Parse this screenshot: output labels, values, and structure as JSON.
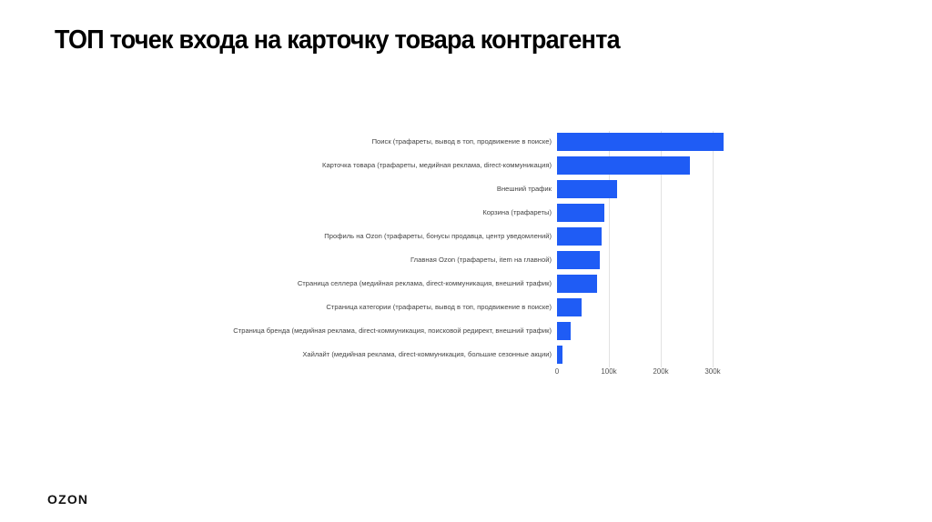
{
  "page": {
    "title": "ТОП точек входа на карточку товара контрагента",
    "logo": "OZON"
  },
  "chart_data": {
    "type": "bar",
    "orientation": "horizontal",
    "title": "ТОП точек входа на карточку товара контрагента",
    "xlabel": "",
    "ylabel": "",
    "categories": [
      "Поиск (трафареты, вывод в топ, продвижение в поиске)",
      "Карточка товара (трафареты, медийная реклама, direct-коммуникация)",
      "Внешний трафик",
      "Корзина (трафареты)",
      "Профиль на Ozon (трафареты, бонусы продавца, центр уведомлений)",
      "Главная Ozon (трафареты, item на главной)",
      "Страница селлера (медийная реклама, direct-коммуникация, внешний трафик)",
      "Страница категории (трафареты, вывод в топ, продвижение в поиске)",
      "Страница бренда (медийная реклама, direct-коммуникация, поисковой редирект, внешний трафик)",
      "Хайлайт (медийная реклама, direct-коммуникация, большие сезонные акции)"
    ],
    "values": [
      321000,
      256000,
      116000,
      91000,
      86000,
      82000,
      77000,
      47000,
      26000,
      11000
    ],
    "xlim": [
      0,
      330000
    ],
    "x_ticks": [
      "0",
      "100k",
      "200k",
      "300k"
    ],
    "x_tick_values": [
      0,
      100000,
      200000,
      300000
    ],
    "grid": true,
    "legend": null,
    "bar_color": "#1f5cf5"
  }
}
